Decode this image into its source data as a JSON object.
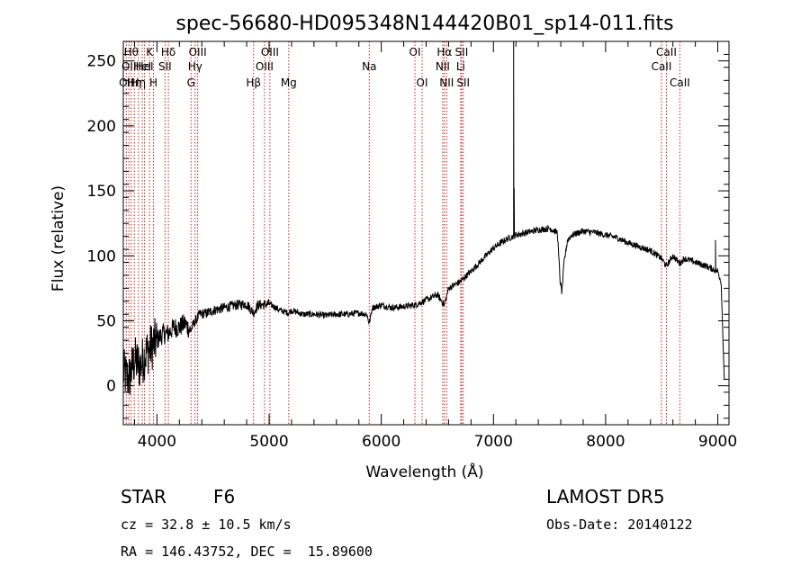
{
  "chart_data": {
    "type": "line",
    "title": "spec-56680-HD095348N144420B01_sp14-011.fits",
    "xlabel": "Wavelength (Å)",
    "ylabel": "Flux (relative)",
    "xlim": [
      3700,
      9100
    ],
    "ylim": [
      -30,
      265
    ],
    "xticks": [
      4000,
      5000,
      6000,
      7000,
      8000,
      9000
    ],
    "yticks": [
      0,
      50,
      100,
      150,
      200,
      250
    ],
    "grid": false,
    "spectrum_anchors": [
      [
        3700,
        10
      ],
      [
        3750,
        5
      ],
      [
        3800,
        20
      ],
      [
        3850,
        15
      ],
      [
        3900,
        25
      ],
      [
        3950,
        30
      ],
      [
        4000,
        35
      ],
      [
        4050,
        40
      ],
      [
        4100,
        40
      ],
      [
        4150,
        45
      ],
      [
        4200,
        45
      ],
      [
        4250,
        48
      ],
      [
        4300,
        42
      ],
      [
        4330,
        48
      ],
      [
        4380,
        55
      ],
      [
        4450,
        56
      ],
      [
        4500,
        58
      ],
      [
        4600,
        60
      ],
      [
        4700,
        62
      ],
      [
        4800,
        63
      ],
      [
        4861,
        56
      ],
      [
        4900,
        62
      ],
      [
        5000,
        63
      ],
      [
        5100,
        58
      ],
      [
        5172,
        56
      ],
      [
        5200,
        58
      ],
      [
        5300,
        55
      ],
      [
        5400,
        55
      ],
      [
        5500,
        54
      ],
      [
        5600,
        55
      ],
      [
        5700,
        55
      ],
      [
        5800,
        56
      ],
      [
        5870,
        55
      ],
      [
        5893,
        48
      ],
      [
        5920,
        60
      ],
      [
        6000,
        62
      ],
      [
        6100,
        60
      ],
      [
        6200,
        61
      ],
      [
        6300,
        62
      ],
      [
        6400,
        66
      ],
      [
        6500,
        70
      ],
      [
        6563,
        62
      ],
      [
        6600,
        75
      ],
      [
        6700,
        80
      ],
      [
        6800,
        88
      ],
      [
        6900,
        97
      ],
      [
        7000,
        106
      ],
      [
        7100,
        112
      ],
      [
        7200,
        116
      ],
      [
        7300,
        118
      ],
      [
        7400,
        120
      ],
      [
        7500,
        121
      ],
      [
        7570,
        118
      ],
      [
        7595,
        80
      ],
      [
        7610,
        72
      ],
      [
        7630,
        95
      ],
      [
        7660,
        112
      ],
      [
        7700,
        116
      ],
      [
        7800,
        119
      ],
      [
        7900,
        118
      ],
      [
        8000,
        116
      ],
      [
        8100,
        114
      ],
      [
        8200,
        110
      ],
      [
        8300,
        107
      ],
      [
        8400,
        104
      ],
      [
        8498,
        98
      ],
      [
        8542,
        92
      ],
      [
        8600,
        100
      ],
      [
        8662,
        94
      ],
      [
        8700,
        98
      ],
      [
        8800,
        95
      ],
      [
        8900,
        92
      ],
      [
        9000,
        88
      ],
      [
        9030,
        80
      ],
      [
        9045,
        40
      ],
      [
        9060,
        0
      ]
    ],
    "spikes": [
      {
        "x": 7180,
        "y": 265
      },
      {
        "x": 7185,
        "y": 152
      },
      {
        "x": 8980,
        "y": 112
      }
    ],
    "line_markers": [
      {
        "x": 3727,
        "label": "OII",
        "row": 2
      },
      {
        "x": 3750,
        "label": "OII",
        "row": 1
      },
      {
        "x": 3771,
        "label": "Hθ",
        "row": 0
      },
      {
        "x": 3798,
        "label": "Hη",
        "row": 2
      },
      {
        "x": 3835,
        "label": "Hη",
        "row": 2
      },
      {
        "x": 3869,
        "label": "HeI",
        "row": 1
      },
      {
        "x": 3889,
        "label": "HeI",
        "row": 1
      },
      {
        "x": 3934,
        "label": "K",
        "row": 0
      },
      {
        "x": 3969,
        "label": "H",
        "row": 2
      },
      {
        "x": 4072,
        "label": "SII",
        "row": 1
      },
      {
        "x": 4102,
        "label": "Hδ",
        "row": 0
      },
      {
        "x": 4304,
        "label": "G",
        "row": 2
      },
      {
        "x": 4340,
        "label": "Hγ",
        "row": 1
      },
      {
        "x": 4363,
        "label": "OIII",
        "row": 0
      },
      {
        "x": 4861,
        "label": "Hβ",
        "row": 2
      },
      {
        "x": 4959,
        "label": "OIII",
        "row": 1
      },
      {
        "x": 5007,
        "label": "OIII",
        "row": 0
      },
      {
        "x": 5175,
        "label": "Mg",
        "row": 2
      },
      {
        "x": 5893,
        "label": "Na",
        "row": 1
      },
      {
        "x": 6300,
        "label": "OI",
        "row": 0
      },
      {
        "x": 6364,
        "label": "OI",
        "row": 2
      },
      {
        "x": 6548,
        "label": "NII",
        "row": 1
      },
      {
        "x": 6563,
        "label": "Hα",
        "row": 0
      },
      {
        "x": 6583,
        "label": "NII",
        "row": 2
      },
      {
        "x": 6708,
        "label": "Li",
        "row": 1
      },
      {
        "x": 6716,
        "label": "SII",
        "row": 0
      },
      {
        "x": 6731,
        "label": "SII",
        "row": 2
      },
      {
        "x": 8498,
        "label": "CaII",
        "row": 1
      },
      {
        "x": 8542,
        "label": "CaII",
        "row": 0
      },
      {
        "x": 8662,
        "label": "CaII",
        "row": 2
      }
    ]
  },
  "info": {
    "object_class": "STAR",
    "subclass": "F6",
    "survey": "LAMOST DR5",
    "redshift": "cz = 32.8 ± 10.5 km/s",
    "obs_date": "Obs-Date: 20140122",
    "coords": "RA = 146.43752, DEC =  15.89600"
  }
}
